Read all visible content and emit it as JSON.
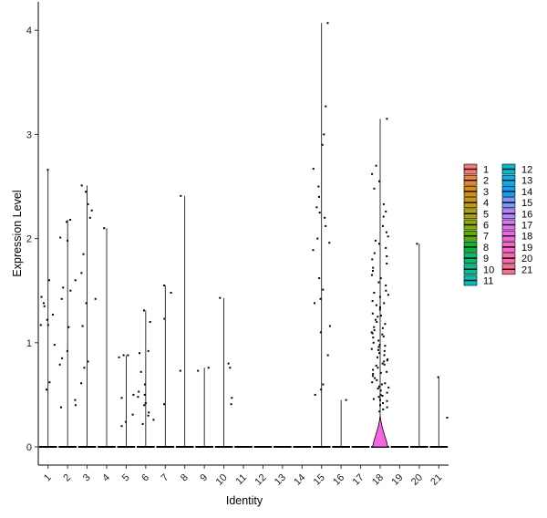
{
  "chart_data": {
    "type": "violin",
    "xlabel": "Identity",
    "ylabel": "Expression Level",
    "ylim": [
      -0.2,
      4.15
    ],
    "yticks": [
      0,
      1,
      2,
      3,
      4
    ],
    "grid": false,
    "legend_placement": "right",
    "categories": [
      "1",
      "2",
      "3",
      "4",
      "5",
      "6",
      "7",
      "8",
      "9",
      "10",
      "11",
      "12",
      "13",
      "14",
      "15",
      "16",
      "17",
      "18",
      "19",
      "20",
      "21"
    ],
    "colors": [
      "#F8766D",
      "#EB8335",
      "#DA8F00",
      "#C49A00",
      "#A9A400",
      "#86AC00",
      "#53B400",
      "#00BA38",
      "#00BE6C",
      "#00C094",
      "#00C0B5",
      "#00BDD2",
      "#00B4EF",
      "#00A5FF",
      "#7997FF",
      "#B385FF",
      "#DC71FA",
      "#F564E3",
      "#FF61C9",
      "#FF66A8",
      "#FF6C91"
    ],
    "max_values": [
      2.66,
      2.18,
      2.51,
      2.1,
      0.88,
      1.31,
      1.55,
      2.41,
      0.76,
      1.43,
      0,
      0,
      0,
      0,
      4.07,
      0.45,
      0,
      3.15,
      0,
      1.95,
      0.67
    ],
    "points": {
      "1": [
        2.66,
        1.6,
        1.44,
        1.38,
        1.22,
        1.17,
        1.17,
        0.98,
        0.62,
        0.55,
        1.35,
        1.27
      ],
      "2": [
        2.18,
        2.01,
        1.98,
        1.53,
        1.5,
        1.42,
        1.15,
        0.92,
        0.85,
        0.79,
        0.45,
        0.4,
        0.38,
        2.16,
        1.6
      ],
      "3": [
        2.51,
        2.45,
        2.33,
        2.2,
        1.85,
        1.67,
        1.42,
        1.38,
        1.16,
        0.82,
        0.76,
        0.61,
        2.27
      ],
      "4": [
        2.1
      ],
      "5": [
        0.88,
        0.86,
        0.5,
        0.47,
        0.31,
        0.24,
        0.2,
        0.88
      ],
      "6": [
        1.31,
        1.2,
        0.92,
        0.9,
        0.72,
        0.6,
        0.53,
        0.48,
        0.4,
        0.33,
        0.3,
        0.26,
        0.22,
        0.5,
        0.42
      ],
      "7": [
        1.55,
        1.48,
        1.23,
        0.41
      ],
      "8": [
        2.41,
        0.73
      ],
      "9": [
        0.76,
        0.73
      ],
      "10": [
        1.43,
        0.8,
        0.76,
        0.47,
        0.41
      ],
      "15": [
        4.07,
        3.27,
        3.0,
        2.9,
        2.67,
        2.5,
        2.4,
        2.3,
        2.25,
        2.2,
        2.12,
        2.0,
        1.96,
        1.89,
        1.62,
        1.51,
        1.42,
        1.38,
        1.16,
        1.1,
        0.88,
        0.6,
        0.55,
        0.5
      ],
      "16": [
        0.45
      ],
      "20": [
        1.95
      ],
      "21": [
        0.67,
        0.28
      ]
    },
    "cluster18": {
      "points": [
        3.15,
        2.7,
        2.62,
        2.48,
        2.33,
        2.21,
        2.12,
        2.06,
        1.98,
        1.91,
        1.86,
        1.8,
        1.72,
        1.65,
        1.62,
        1.55,
        1.5,
        1.48,
        1.44,
        1.4,
        1.36,
        1.32,
        1.28,
        1.25,
        1.22,
        1.2,
        1.18,
        1.15,
        1.12,
        1.1,
        1.08,
        1.05,
        1.02,
        1.0,
        0.98,
        0.96,
        0.94,
        0.92,
        0.9,
        0.88,
        0.86,
        0.84,
        0.82,
        0.8,
        0.78,
        0.76,
        0.74,
        0.72,
        0.7,
        0.68,
        0.66,
        0.64,
        0.62,
        0.6,
        0.58,
        0.56,
        0.54,
        0.52,
        0.5,
        0.48,
        0.46,
        0.44,
        0.42,
        0.4,
        0.38,
        0.36,
        0.34,
        2.02,
        1.76,
        1.58,
        1.34,
        1.06,
        0.97,
        0.83,
        0.71,
        0.57,
        0.49,
        2.26,
        1.95,
        1.69,
        1.46,
        1.26,
        1.14,
        0.93,
        0.79,
        0.61,
        0.45,
        2.55,
        1.83,
        1.38,
        1.09
      ],
      "density_y": [
        0,
        0.05,
        0.1,
        0.15,
        0.2,
        0.25,
        0.3
      ],
      "density_half_width": [
        0.42,
        0.36,
        0.27,
        0.18,
        0.1,
        0.04,
        0.0
      ]
    }
  }
}
